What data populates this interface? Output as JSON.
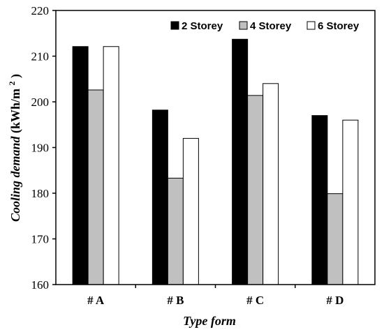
{
  "chart_data": {
    "type": "bar",
    "xlabel": "Type form",
    "ylabel_main": "Cooling demand",
    "ylabel_unit": "(kWh/m",
    "ylabel_sup": "2",
    "ylabel_close": ")",
    "categories": [
      "# A",
      "# B",
      "# C",
      "# D"
    ],
    "series": [
      {
        "name": "2 Storey",
        "color": "#000000",
        "values": [
          212.1,
          198.2,
          213.7,
          197.0
        ]
      },
      {
        "name": "4 Storey",
        "color": "#c0c0c0",
        "values": [
          202.6,
          183.3,
          201.4,
          179.9
        ]
      },
      {
        "name": "6 Storey",
        "color": "#ffffff",
        "values": [
          212.1,
          192.0,
          204.0,
          196.0
        ]
      }
    ],
    "ylim": [
      160,
      220
    ],
    "yticks": [
      "160",
      "170",
      "180",
      "190",
      "200",
      "210",
      "220"
    ],
    "legend_position": "top-right",
    "grid": false
  }
}
